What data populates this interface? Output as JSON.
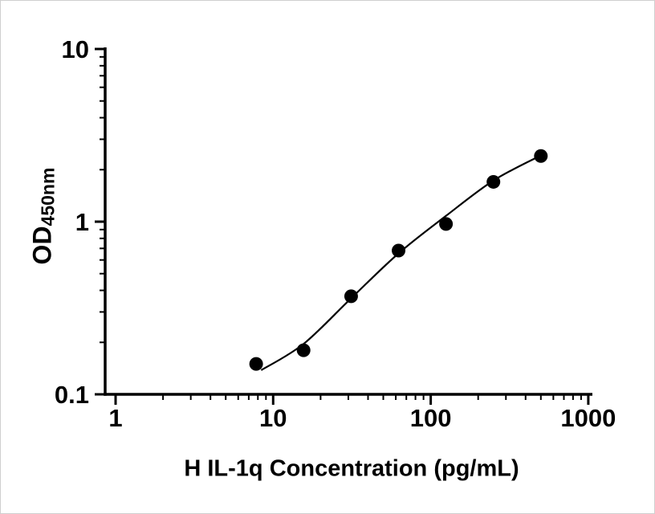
{
  "figure": {
    "background": "#ffffff",
    "border_color": "#cfcfcf"
  },
  "chart_data": {
    "type": "scatter",
    "title": "",
    "xlabel": "H IL-1q Concentration (pg/mL)",
    "ylabel_main": "OD",
    "ylabel_sub": "450nm",
    "x_scale": "log",
    "y_scale": "log",
    "xlim": [
      1,
      1000
    ],
    "ylim": [
      0.1,
      10
    ],
    "grid": false,
    "legend": false,
    "x_ticks": [
      {
        "value": 1,
        "label": "1"
      },
      {
        "value": 10,
        "label": "10"
      },
      {
        "value": 100,
        "label": "100"
      },
      {
        "value": 1000,
        "label": "1000"
      }
    ],
    "y_ticks": [
      {
        "value": 0.1,
        "label": "0.1"
      },
      {
        "value": 1,
        "label": "1"
      },
      {
        "value": 10,
        "label": "10"
      }
    ],
    "points": [
      {
        "x": 7.8,
        "y": 0.15
      },
      {
        "x": 15.6,
        "y": 0.18
      },
      {
        "x": 31.25,
        "y": 0.37
      },
      {
        "x": 62.5,
        "y": 0.68
      },
      {
        "x": 125,
        "y": 0.97
      },
      {
        "x": 250,
        "y": 1.7
      },
      {
        "x": 500,
        "y": 2.4
      }
    ],
    "fit_curve": [
      {
        "x": 8.4,
        "y": 0.138
      },
      {
        "x": 15.6,
        "y": 0.196
      },
      {
        "x": 31.25,
        "y": 0.36
      },
      {
        "x": 62.5,
        "y": 0.655
      },
      {
        "x": 125,
        "y": 1.08
      },
      {
        "x": 250,
        "y": 1.73
      },
      {
        "x": 500,
        "y": 2.42
      }
    ],
    "marker_color": "#000000",
    "line_color": "#000000",
    "axis_color": "#000000",
    "tick_label_color": "#000000"
  }
}
